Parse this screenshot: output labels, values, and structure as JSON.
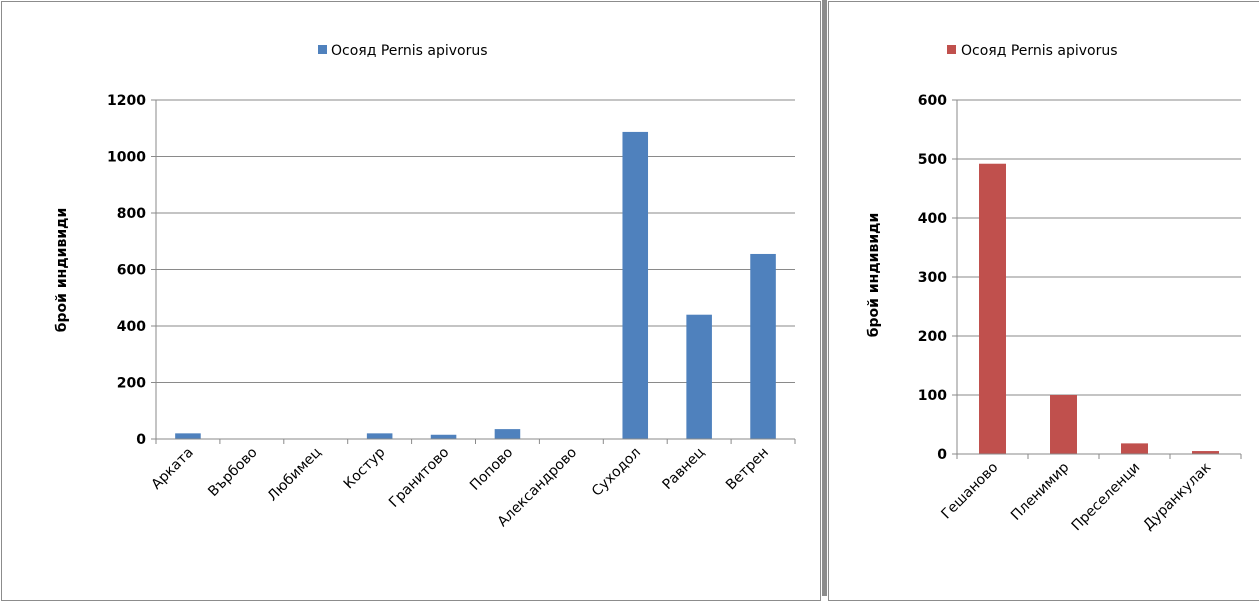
{
  "chart_data": [
    {
      "type": "bar",
      "title": "",
      "xlabel": "",
      "ylabel": "брой индивиди",
      "ylim": [
        0,
        1200
      ],
      "yticks": [
        0,
        200,
        400,
        600,
        800,
        1000,
        1200
      ],
      "grid": true,
      "legend_position": "top-center",
      "categories": [
        "Арката",
        "Върбово",
        "Любимец",
        "Костур",
        "Гранитово",
        "Попово",
        "Александрово",
        "Суходол",
        "Равнец",
        "Ветрен"
      ],
      "series": [
        {
          "name": "Осояд Pernis apivorus",
          "color": "#4f81bd",
          "values": [
            20,
            0,
            0,
            20,
            15,
            35,
            0,
            1087,
            440,
            655
          ]
        }
      ]
    },
    {
      "type": "bar",
      "title": "",
      "xlabel": "",
      "ylabel": "брой индивиди",
      "ylim": [
        0,
        600
      ],
      "yticks": [
        0,
        100,
        200,
        300,
        400,
        500,
        600
      ],
      "grid": true,
      "legend_position": "top-center",
      "categories": [
        "Гешаново",
        "Пленимир",
        "Преселенци",
        "Дуранкулак"
      ],
      "series": [
        {
          "name": "Осояд Pernis apivorus",
          "color": "#c0504d",
          "values": [
            492,
            100,
            18,
            5
          ]
        }
      ]
    }
  ]
}
